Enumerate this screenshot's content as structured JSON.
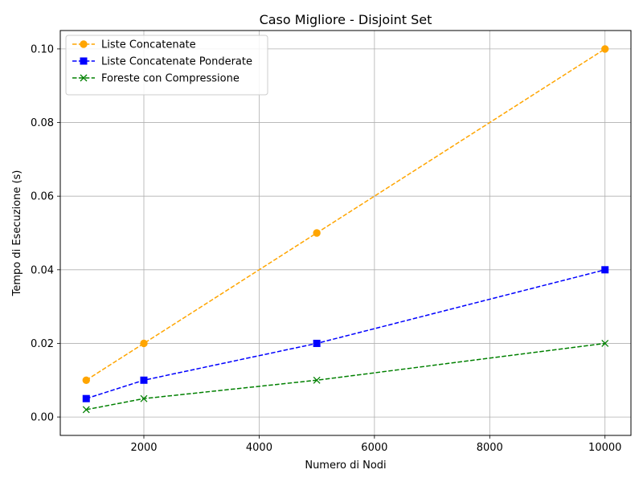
{
  "chart_data": {
    "type": "line",
    "title": "Caso Migliore - Disjoint Set",
    "xlabel": "Numero di Nodi",
    "ylabel": "Tempo di Esecuzione (s)",
    "x": [
      1000,
      2000,
      5000,
      10000
    ],
    "xlim": [
      550,
      10450
    ],
    "ylim": [
      -0.005,
      0.105
    ],
    "xticks": [
      2000,
      4000,
      6000,
      8000,
      10000
    ],
    "xtick_labels": [
      "2000",
      "4000",
      "6000",
      "8000",
      "10000"
    ],
    "yticks": [
      0.0,
      0.02,
      0.04,
      0.06,
      0.08,
      0.1
    ],
    "ytick_labels": [
      "0.00",
      "0.02",
      "0.04",
      "0.06",
      "0.08",
      "0.10"
    ],
    "grid": true,
    "legend_position": "top-left",
    "series": [
      {
        "name": "Liste Concatenate",
        "values": [
          0.01,
          0.02,
          0.05,
          0.1
        ],
        "color": "#ffa500",
        "marker": "circle",
        "linestyle": "dashed"
      },
      {
        "name": "Liste Concatenate Ponderate",
        "values": [
          0.005,
          0.01,
          0.02,
          0.04
        ],
        "color": "#0000ff",
        "marker": "square",
        "linestyle": "dashed"
      },
      {
        "name": "Foreste con Compressione",
        "values": [
          0.002,
          0.005,
          0.01,
          0.02
        ],
        "color": "#008000",
        "marker": "x",
        "linestyle": "dashed"
      }
    ]
  }
}
